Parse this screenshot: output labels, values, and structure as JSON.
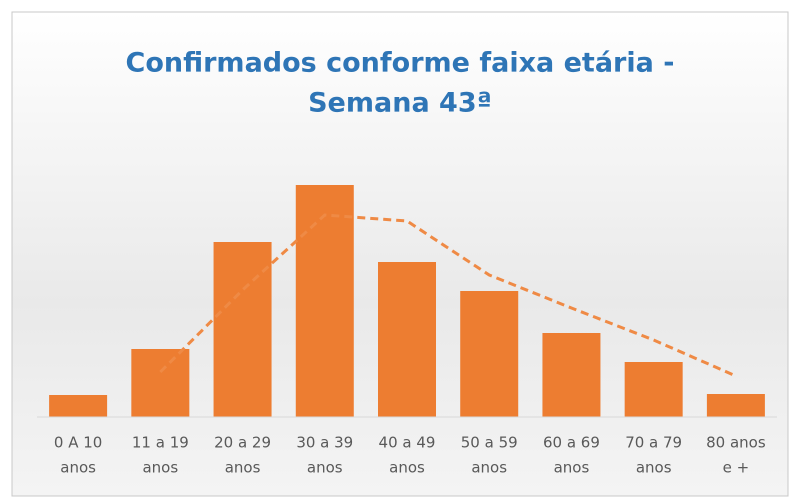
{
  "chart_data": {
    "type": "bar",
    "title": [
      "Confirmados conforme faixa etária -",
      "Semana 43ª"
    ],
    "categories": [
      [
        "0 A 10",
        "anos"
      ],
      [
        "11 a 19",
        "anos"
      ],
      [
        "20 a 29",
        "anos"
      ],
      [
        "30 a 39",
        "anos"
      ],
      [
        "40 a 49",
        "anos"
      ],
      [
        "50 a 59",
        "anos"
      ],
      [
        "60 a 69",
        "anos"
      ],
      [
        "70 a 79",
        "anos"
      ],
      [
        "80 anos",
        "e +"
      ]
    ],
    "values": [
      22,
      68,
      175,
      232,
      155,
      126,
      84,
      55,
      23
    ],
    "color": "#ed7d31",
    "trend": {
      "color": "#ef8a45",
      "dashed": true,
      "values": [
        null,
        45,
        127,
        202,
        196,
        142,
        109,
        77,
        41
      ]
    },
    "ylim": [
      0,
      250
    ]
  }
}
